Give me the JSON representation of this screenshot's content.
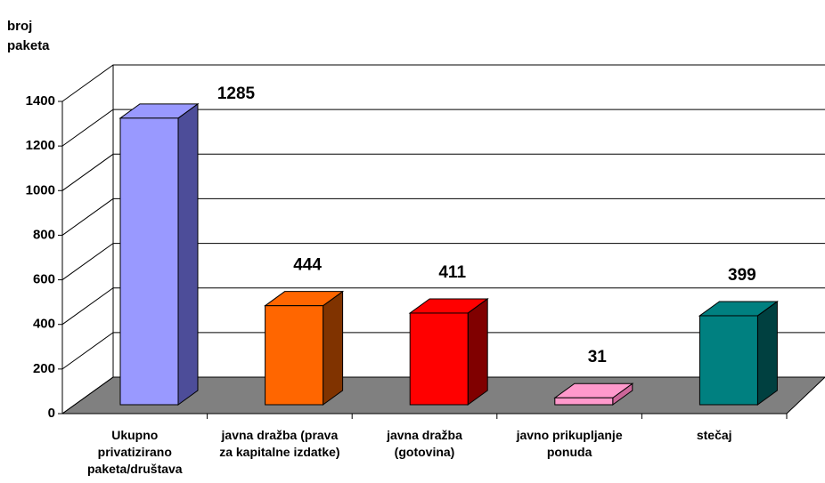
{
  "chart_data": {
    "type": "bar3d",
    "y_axis_label": "broj paketa",
    "categories": [
      "Ukupno privatizirano paketa/društava",
      "javna dražba (prava za kapitalne izdatke)",
      "javna dražba (gotovina)",
      "javno prikupljanje ponuda",
      "stečaj"
    ],
    "values": [
      1285,
      444,
      411,
      31,
      399
    ],
    "colors": [
      "#9999ff",
      "#ff6600",
      "#ff0000",
      "#ff99cc",
      "#008080"
    ],
    "side_colors": [
      "#4d4d99",
      "#803300",
      "#800000",
      "#cc6699",
      "#004040"
    ],
    "ylim": [
      0,
      1400
    ],
    "yticks": [
      0,
      200,
      400,
      600,
      800,
      1000,
      1200,
      1400
    ],
    "grid": true
  }
}
